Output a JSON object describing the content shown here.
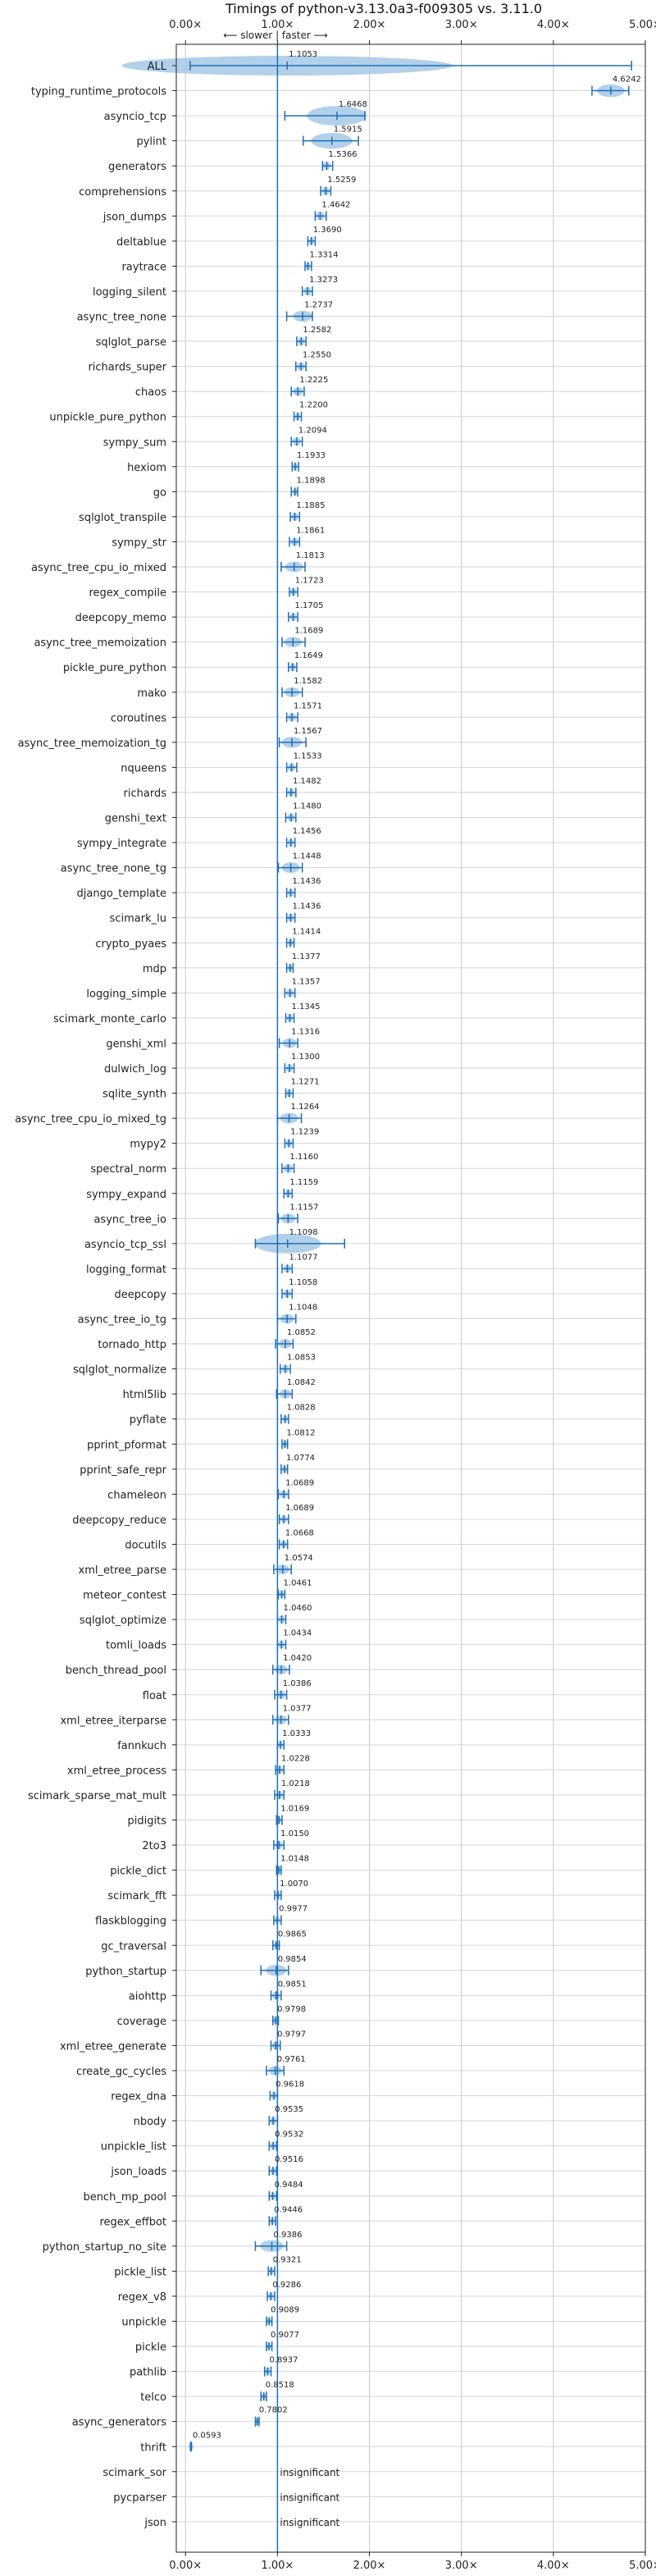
{
  "chart_data": {
    "type": "violin",
    "title": "Timings of python-v3.13.0a3-f009305 vs. 3.11.0",
    "subtitle": "⟵ slower | faster ⟶",
    "xlim": [
      -0.1,
      5.0
    ],
    "xticks": [
      0,
      1,
      2,
      3,
      4,
      5
    ],
    "xtick_labels": [
      "0.00×",
      "1.00×",
      "2.00×",
      "3.00×",
      "4.00×",
      "5.00×"
    ],
    "reference_line": 1.0,
    "grid": true,
    "insignificant_label": "insignificant",
    "colors": {
      "violin": "#a6c8e8",
      "line": "#1f6fb4"
    },
    "benchmarks": [
      {
        "name": "ALL",
        "value": 1.1053,
        "label": "1.1053",
        "lo": 0.05,
        "hi": 4.85
      },
      {
        "name": "typing_runtime_protocols",
        "value": 4.6242,
        "label": "4.6242",
        "lo": 4.42,
        "hi": 4.82
      },
      {
        "name": "asyncio_tcp",
        "value": 1.6468,
        "label": "1.6468",
        "lo": 1.08,
        "hi": 1.95
      },
      {
        "name": "pylint",
        "value": 1.5915,
        "label": "1.5915",
        "lo": 1.28,
        "hi": 1.88
      },
      {
        "name": "generators",
        "value": 1.5366,
        "label": "1.5366",
        "lo": 1.49,
        "hi": 1.6
      },
      {
        "name": "comprehensions",
        "value": 1.5259,
        "label": "1.5259",
        "lo": 1.47,
        "hi": 1.58
      },
      {
        "name": "json_dumps",
        "value": 1.4642,
        "label": "1.4642",
        "lo": 1.41,
        "hi": 1.53
      },
      {
        "name": "deltablue",
        "value": 1.369,
        "label": "1.3690",
        "lo": 1.33,
        "hi": 1.41
      },
      {
        "name": "raytrace",
        "value": 1.3314,
        "label": "1.3314",
        "lo": 1.3,
        "hi": 1.37
      },
      {
        "name": "logging_silent",
        "value": 1.3273,
        "label": "1.3273",
        "lo": 1.27,
        "hi": 1.38
      },
      {
        "name": "async_tree_none",
        "value": 1.2737,
        "label": "1.2737",
        "lo": 1.1,
        "hi": 1.38
      },
      {
        "name": "sqlglot_parse",
        "value": 1.2582,
        "label": "1.2582",
        "lo": 1.21,
        "hi": 1.31
      },
      {
        "name": "richards_super",
        "value": 1.255,
        "label": "1.2550",
        "lo": 1.2,
        "hi": 1.31
      },
      {
        "name": "chaos",
        "value": 1.2225,
        "label": "1.2225",
        "lo": 1.15,
        "hi": 1.29
      },
      {
        "name": "unpickle_pure_python",
        "value": 1.22,
        "label": "1.2200",
        "lo": 1.18,
        "hi": 1.26
      },
      {
        "name": "sympy_sum",
        "value": 1.2094,
        "label": "1.2094",
        "lo": 1.15,
        "hi": 1.27
      },
      {
        "name": "hexiom",
        "value": 1.1933,
        "label": "1.1933",
        "lo": 1.16,
        "hi": 1.23
      },
      {
        "name": "go",
        "value": 1.1898,
        "label": "1.1898",
        "lo": 1.15,
        "hi": 1.22
      },
      {
        "name": "sqlglot_transpile",
        "value": 1.1885,
        "label": "1.1885",
        "lo": 1.14,
        "hi": 1.24
      },
      {
        "name": "sympy_str",
        "value": 1.1861,
        "label": "1.1861",
        "lo": 1.13,
        "hi": 1.24
      },
      {
        "name": "async_tree_cpu_io_mixed",
        "value": 1.1813,
        "label": "1.1813",
        "lo": 1.04,
        "hi": 1.3
      },
      {
        "name": "regex_compile",
        "value": 1.1723,
        "label": "1.1723",
        "lo": 1.13,
        "hi": 1.22
      },
      {
        "name": "deepcopy_memo",
        "value": 1.1705,
        "label": "1.1705",
        "lo": 1.12,
        "hi": 1.22
      },
      {
        "name": "async_tree_memoization",
        "value": 1.1689,
        "label": "1.1689",
        "lo": 1.05,
        "hi": 1.3
      },
      {
        "name": "pickle_pure_python",
        "value": 1.1649,
        "label": "1.1649",
        "lo": 1.12,
        "hi": 1.21
      },
      {
        "name": "mako",
        "value": 1.1582,
        "label": "1.1582",
        "lo": 1.05,
        "hi": 1.27
      },
      {
        "name": "coroutines",
        "value": 1.1571,
        "label": "1.1571",
        "lo": 1.1,
        "hi": 1.22
      },
      {
        "name": "async_tree_memoization_tg",
        "value": 1.1567,
        "label": "1.1567",
        "lo": 1.02,
        "hi": 1.31
      },
      {
        "name": "nqueens",
        "value": 1.1533,
        "label": "1.1533",
        "lo": 1.1,
        "hi": 1.21
      },
      {
        "name": "richards",
        "value": 1.1482,
        "label": "1.1482",
        "lo": 1.1,
        "hi": 1.2
      },
      {
        "name": "genshi_text",
        "value": 1.148,
        "label": "1.1480",
        "lo": 1.09,
        "hi": 1.2
      },
      {
        "name": "sympy_integrate",
        "value": 1.1456,
        "label": "1.1456",
        "lo": 1.1,
        "hi": 1.19
      },
      {
        "name": "async_tree_none_tg",
        "value": 1.1448,
        "label": "1.1448",
        "lo": 1.01,
        "hi": 1.27
      },
      {
        "name": "django_template",
        "value": 1.1436,
        "label": "1.1436",
        "lo": 1.1,
        "hi": 1.19
      },
      {
        "name": "scimark_lu",
        "value": 1.1436,
        "label": "1.1436",
        "lo": 1.1,
        "hi": 1.19
      },
      {
        "name": "crypto_pyaes",
        "value": 1.1414,
        "label": "1.1414",
        "lo": 1.1,
        "hi": 1.18
      },
      {
        "name": "mdp",
        "value": 1.1377,
        "label": "1.1377",
        "lo": 1.1,
        "hi": 1.17
      },
      {
        "name": "logging_simple",
        "value": 1.1357,
        "label": "1.1357",
        "lo": 1.08,
        "hi": 1.19
      },
      {
        "name": "scimark_monte_carlo",
        "value": 1.1345,
        "label": "1.1345",
        "lo": 1.09,
        "hi": 1.18
      },
      {
        "name": "genshi_xml",
        "value": 1.1316,
        "label": "1.1316",
        "lo": 1.02,
        "hi": 1.22
      },
      {
        "name": "dulwich_log",
        "value": 1.13,
        "label": "1.1300",
        "lo": 1.08,
        "hi": 1.18
      },
      {
        "name": "sqlite_synth",
        "value": 1.1271,
        "label": "1.1271",
        "lo": 1.09,
        "hi": 1.17
      },
      {
        "name": "async_tree_cpu_io_mixed_tg",
        "value": 1.1264,
        "label": "1.1264",
        "lo": 1.0,
        "hi": 1.26
      },
      {
        "name": "mypy2",
        "value": 1.1239,
        "label": "1.1239",
        "lo": 1.08,
        "hi": 1.17
      },
      {
        "name": "spectral_norm",
        "value": 1.116,
        "label": "1.1160",
        "lo": 1.05,
        "hi": 1.18
      },
      {
        "name": "sympy_expand",
        "value": 1.1159,
        "label": "1.1159",
        "lo": 1.07,
        "hi": 1.16
      },
      {
        "name": "async_tree_io",
        "value": 1.1157,
        "label": "1.1157",
        "lo": 1.01,
        "hi": 1.22
      },
      {
        "name": "asyncio_tcp_ssl",
        "value": 1.1098,
        "label": "1.1098",
        "lo": 0.76,
        "hi": 1.73
      },
      {
        "name": "logging_format",
        "value": 1.1077,
        "label": "1.1077",
        "lo": 1.05,
        "hi": 1.16
      },
      {
        "name": "deepcopy",
        "value": 1.1058,
        "label": "1.1058",
        "lo": 1.05,
        "hi": 1.16
      },
      {
        "name": "async_tree_io_tg",
        "value": 1.1048,
        "label": "1.1048",
        "lo": 1.0,
        "hi": 1.2
      },
      {
        "name": "tornado_http",
        "value": 1.0852,
        "label": "1.0852",
        "lo": 0.98,
        "hi": 1.17
      },
      {
        "name": "sqlglot_normalize",
        "value": 1.0853,
        "label": "1.0853",
        "lo": 1.03,
        "hi": 1.14
      },
      {
        "name": "html5lib",
        "value": 1.0842,
        "label": "1.0842",
        "lo": 0.99,
        "hi": 1.16
      },
      {
        "name": "pyflate",
        "value": 1.0828,
        "label": "1.0828",
        "lo": 1.04,
        "hi": 1.12
      },
      {
        "name": "pprint_pformat",
        "value": 1.0812,
        "label": "1.0812",
        "lo": 1.05,
        "hi": 1.11
      },
      {
        "name": "pprint_safe_repr",
        "value": 1.0774,
        "label": "1.0774",
        "lo": 1.04,
        "hi": 1.11
      },
      {
        "name": "chameleon",
        "value": 1.0689,
        "label": "1.0689",
        "lo": 1.01,
        "hi": 1.12
      },
      {
        "name": "deepcopy_reduce",
        "value": 1.0689,
        "label": "1.0689",
        "lo": 1.02,
        "hi": 1.12
      },
      {
        "name": "docutils",
        "value": 1.0668,
        "label": "1.0668",
        "lo": 1.02,
        "hi": 1.11
      },
      {
        "name": "xml_etree_parse",
        "value": 1.0574,
        "label": "1.0574",
        "lo": 0.96,
        "hi": 1.15
      },
      {
        "name": "meteor_contest",
        "value": 1.0461,
        "label": "1.0461",
        "lo": 1.01,
        "hi": 1.08
      },
      {
        "name": "sqlglot_optimize",
        "value": 1.046,
        "label": "1.0460",
        "lo": 1.0,
        "hi": 1.09
      },
      {
        "name": "tomli_loads",
        "value": 1.0434,
        "label": "1.0434",
        "lo": 1.0,
        "hi": 1.09
      },
      {
        "name": "bench_thread_pool",
        "value": 1.042,
        "label": "1.0420",
        "lo": 0.95,
        "hi": 1.13
      },
      {
        "name": "float",
        "value": 1.0386,
        "label": "1.0386",
        "lo": 0.97,
        "hi": 1.1
      },
      {
        "name": "xml_etree_iterparse",
        "value": 1.0377,
        "label": "1.0377",
        "lo": 0.95,
        "hi": 1.12
      },
      {
        "name": "fannkuch",
        "value": 1.0333,
        "label": "1.0333",
        "lo": 1.0,
        "hi": 1.07
      },
      {
        "name": "xml_etree_process",
        "value": 1.0228,
        "label": "1.0228",
        "lo": 0.98,
        "hi": 1.07
      },
      {
        "name": "scimark_sparse_mat_mult",
        "value": 1.0218,
        "label": "1.0218",
        "lo": 0.97,
        "hi": 1.07
      },
      {
        "name": "pidigits",
        "value": 1.0169,
        "label": "1.0169",
        "lo": 0.99,
        "hi": 1.05
      },
      {
        "name": "2to3",
        "value": 1.015,
        "label": "1.0150",
        "lo": 0.96,
        "hi": 1.07
      },
      {
        "name": "pickle_dict",
        "value": 1.0148,
        "label": "1.0148",
        "lo": 0.99,
        "hi": 1.04
      },
      {
        "name": "scimark_fft",
        "value": 1.007,
        "label": "1.0070",
        "lo": 0.97,
        "hi": 1.04
      },
      {
        "name": "flaskblogging",
        "value": 0.9977,
        "label": "0.9977",
        "lo": 0.96,
        "hi": 1.04
      },
      {
        "name": "gc_traversal",
        "value": 0.9865,
        "label": "0.9865",
        "lo": 0.95,
        "hi": 1.02
      },
      {
        "name": "python_startup",
        "value": 0.9854,
        "label": "0.9854",
        "lo": 0.82,
        "hi": 1.12
      },
      {
        "name": "aiohttp",
        "value": 0.9851,
        "label": "0.9851",
        "lo": 0.93,
        "hi": 1.04
      },
      {
        "name": "coverage",
        "value": 0.9798,
        "label": "0.9798",
        "lo": 0.95,
        "hi": 1.01
      },
      {
        "name": "xml_etree_generate",
        "value": 0.9797,
        "label": "0.9797",
        "lo": 0.93,
        "hi": 1.03
      },
      {
        "name": "create_gc_cycles",
        "value": 0.9761,
        "label": "0.9761",
        "lo": 0.88,
        "hi": 1.07
      },
      {
        "name": "regex_dna",
        "value": 0.9618,
        "label": "0.9618",
        "lo": 0.92,
        "hi": 1.0
      },
      {
        "name": "nbody",
        "value": 0.9535,
        "label": "0.9535",
        "lo": 0.91,
        "hi": 1.0
      },
      {
        "name": "unpickle_list",
        "value": 0.9532,
        "label": "0.9532",
        "lo": 0.91,
        "hi": 0.99
      },
      {
        "name": "json_loads",
        "value": 0.9516,
        "label": "0.9516",
        "lo": 0.91,
        "hi": 0.99
      },
      {
        "name": "bench_mp_pool",
        "value": 0.9484,
        "label": "0.9484",
        "lo": 0.91,
        "hi": 0.99
      },
      {
        "name": "regex_effbot",
        "value": 0.9446,
        "label": "0.9446",
        "lo": 0.91,
        "hi": 0.98
      },
      {
        "name": "python_startup_no_site",
        "value": 0.9386,
        "label": "0.9386",
        "lo": 0.76,
        "hi": 1.1
      },
      {
        "name": "pickle_list",
        "value": 0.9321,
        "label": "0.9321",
        "lo": 0.9,
        "hi": 0.97
      },
      {
        "name": "regex_v8",
        "value": 0.9286,
        "label": "0.9286",
        "lo": 0.89,
        "hi": 0.97
      },
      {
        "name": "unpickle",
        "value": 0.9089,
        "label": "0.9089",
        "lo": 0.88,
        "hi": 0.94
      },
      {
        "name": "pickle",
        "value": 0.9077,
        "label": "0.9077",
        "lo": 0.88,
        "hi": 0.94
      },
      {
        "name": "pathlib",
        "value": 0.8937,
        "label": "0.8937",
        "lo": 0.86,
        "hi": 0.93
      },
      {
        "name": "telco",
        "value": 0.8518,
        "label": "0.8518",
        "lo": 0.82,
        "hi": 0.88
      },
      {
        "name": "async_generators",
        "value": 0.7802,
        "label": "0.7802",
        "lo": 0.76,
        "hi": 0.8
      },
      {
        "name": "thrift",
        "value": 0.0593,
        "label": "0.0593",
        "lo": 0.055,
        "hi": 0.064
      },
      {
        "name": "scimark_sor",
        "value": null,
        "label": "insignificant"
      },
      {
        "name": "pycparser",
        "value": null,
        "label": "insignificant"
      },
      {
        "name": "json",
        "value": null,
        "label": "insignificant"
      }
    ]
  }
}
